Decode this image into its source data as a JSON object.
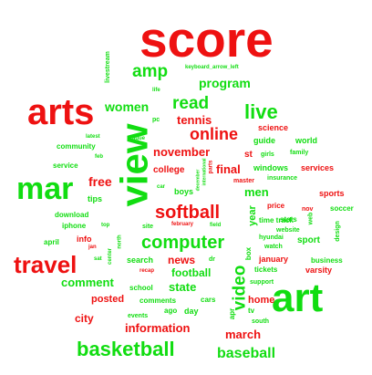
{
  "colors": {
    "red": "#ee1111",
    "green": "#11dd11",
    "background": "#ffffff"
  },
  "words": [
    {
      "text": "score",
      "color": "red",
      "rot": false
    },
    {
      "text": "arts",
      "color": "red",
      "rot": false
    },
    {
      "text": "art",
      "color": "green",
      "rot": false
    },
    {
      "text": "view",
      "color": "green",
      "rot": true
    },
    {
      "text": "mar",
      "color": "green",
      "rot": false
    },
    {
      "text": "travel",
      "color": "red",
      "rot": false
    },
    {
      "text": "basketball",
      "color": "green",
      "rot": false
    },
    {
      "text": "computer",
      "color": "green",
      "rot": false
    },
    {
      "text": "softball",
      "color": "red",
      "rot": false
    },
    {
      "text": "live",
      "color": "green",
      "rot": false
    },
    {
      "text": "amp",
      "color": "green",
      "rot": false
    },
    {
      "text": "read",
      "color": "green",
      "rot": false
    },
    {
      "text": "online",
      "color": "red",
      "rot": false
    },
    {
      "text": "video",
      "color": "green",
      "rot": true
    },
    {
      "text": "baseball",
      "color": "green",
      "rot": false
    },
    {
      "text": "program",
      "color": "green",
      "rot": false
    },
    {
      "text": "women",
      "color": "green",
      "rot": false
    },
    {
      "text": "tennis",
      "color": "red",
      "rot": false
    },
    {
      "text": "november",
      "color": "red",
      "rot": false
    },
    {
      "text": "information",
      "color": "red",
      "rot": false
    },
    {
      "text": "march",
      "color": "red",
      "rot": false
    },
    {
      "text": "final",
      "color": "red",
      "rot": false
    },
    {
      "text": "free",
      "color": "red",
      "rot": false
    },
    {
      "text": "men",
      "color": "green",
      "rot": false
    },
    {
      "text": "comment",
      "color": "green",
      "rot": false
    },
    {
      "text": "state",
      "color": "green",
      "rot": false
    },
    {
      "text": "football",
      "color": "green",
      "rot": false
    },
    {
      "text": "news",
      "color": "red",
      "rot": false
    },
    {
      "text": "city",
      "color": "red",
      "rot": false
    },
    {
      "text": "posted",
      "color": "red",
      "rot": false
    },
    {
      "text": "home",
      "color": "red",
      "rot": false
    },
    {
      "text": "year",
      "color": "green",
      "rot": true
    },
    {
      "text": "college",
      "color": "red",
      "rot": false
    },
    {
      "text": "science",
      "color": "red",
      "rot": false
    },
    {
      "text": "st",
      "color": "red",
      "rot": false
    },
    {
      "text": "sport",
      "color": "green",
      "rot": false
    },
    {
      "text": "services",
      "color": "red",
      "rot": false
    },
    {
      "text": "sports",
      "color": "red",
      "rot": false
    },
    {
      "text": "world",
      "color": "green",
      "rot": false
    },
    {
      "text": "guide",
      "color": "green",
      "rot": false
    },
    {
      "text": "boys",
      "color": "green",
      "rot": false
    },
    {
      "text": "search",
      "color": "green",
      "rot": false
    },
    {
      "text": "info",
      "color": "red",
      "rot": false
    },
    {
      "text": "tips",
      "color": "green",
      "rot": false
    },
    {
      "text": "day",
      "color": "green",
      "rot": false
    },
    {
      "text": "january",
      "color": "red",
      "rot": false
    },
    {
      "text": "varsity",
      "color": "red",
      "rot": false
    },
    {
      "text": "business",
      "color": "green",
      "rot": false
    },
    {
      "text": "tickets",
      "color": "green",
      "rot": false
    },
    {
      "text": "windows",
      "color": "green",
      "rot": false
    },
    {
      "text": "soccer",
      "color": "green",
      "rot": false
    },
    {
      "text": "price",
      "color": "red",
      "rot": false
    },
    {
      "text": "stats",
      "color": "green",
      "rot": false
    },
    {
      "text": "time track",
      "color": "green",
      "rot": false
    },
    {
      "text": "apr",
      "color": "green",
      "rot": true
    },
    {
      "text": "ago",
      "color": "green",
      "rot": false
    },
    {
      "text": "tv",
      "color": "green",
      "rot": false
    },
    {
      "text": "cars",
      "color": "green",
      "rot": false
    },
    {
      "text": "box",
      "color": "green",
      "rot": true
    },
    {
      "text": "download",
      "color": "green",
      "rot": false
    },
    {
      "text": "community",
      "color": "green",
      "rot": false
    },
    {
      "text": "service",
      "color": "green",
      "rot": false
    },
    {
      "text": "iphone",
      "color": "green",
      "rot": false
    },
    {
      "text": "april",
      "color": "green",
      "rot": false
    },
    {
      "text": "school",
      "color": "green",
      "rot": false
    },
    {
      "text": "comments",
      "color": "green",
      "rot": false
    },
    {
      "text": "events",
      "color": "green",
      "rot": false
    },
    {
      "text": "support",
      "color": "green",
      "rot": false
    },
    {
      "text": "girls",
      "color": "green",
      "rot": false
    },
    {
      "text": "family",
      "color": "green",
      "rot": false
    },
    {
      "text": "insurance",
      "color": "green",
      "rot": false
    },
    {
      "text": "master",
      "color": "red",
      "rot": false
    },
    {
      "text": "website",
      "color": "green",
      "rot": false
    },
    {
      "text": "hyundai",
      "color": "green",
      "rot": false
    },
    {
      "text": "watch",
      "color": "green",
      "rot": false
    },
    {
      "text": "nov",
      "color": "red",
      "rot": false
    },
    {
      "text": "web",
      "color": "green",
      "rot": true
    },
    {
      "text": "design",
      "color": "green",
      "rot": true
    },
    {
      "text": "south",
      "color": "green",
      "rot": false
    },
    {
      "text": "livestream",
      "color": "green",
      "rot": true
    },
    {
      "text": "keyboard_arrow_left",
      "color": "green",
      "rot": false
    },
    {
      "text": "life",
      "color": "green",
      "rot": false
    },
    {
      "text": "pc",
      "color": "green",
      "rot": false
    },
    {
      "text": "latest",
      "color": "green",
      "rot": false
    },
    {
      "text": "league",
      "color": "green",
      "rot": false
    },
    {
      "text": "feb",
      "color": "green",
      "rot": false
    },
    {
      "text": "top",
      "color": "green",
      "rot": false
    },
    {
      "text": "site",
      "color": "green",
      "rot": false
    },
    {
      "text": "february",
      "color": "red",
      "rot": false
    },
    {
      "text": "field",
      "color": "green",
      "rot": false
    },
    {
      "text": "jan",
      "color": "red",
      "rot": false
    },
    {
      "text": "sat",
      "color": "green",
      "rot": false
    },
    {
      "text": "north",
      "color": "green",
      "rot": true
    },
    {
      "text": "center",
      "color": "green",
      "rot": true
    },
    {
      "text": "recap",
      "color": "red",
      "rot": false
    },
    {
      "text": "dr",
      "color": "green",
      "rot": false
    },
    {
      "text": "car",
      "color": "green",
      "rot": false
    },
    {
      "text": "december",
      "color": "green",
      "rot": true
    },
    {
      "text": "parts",
      "color": "red",
      "rot": true
    },
    {
      "text": "international",
      "color": "green",
      "rot": true
    }
  ]
}
